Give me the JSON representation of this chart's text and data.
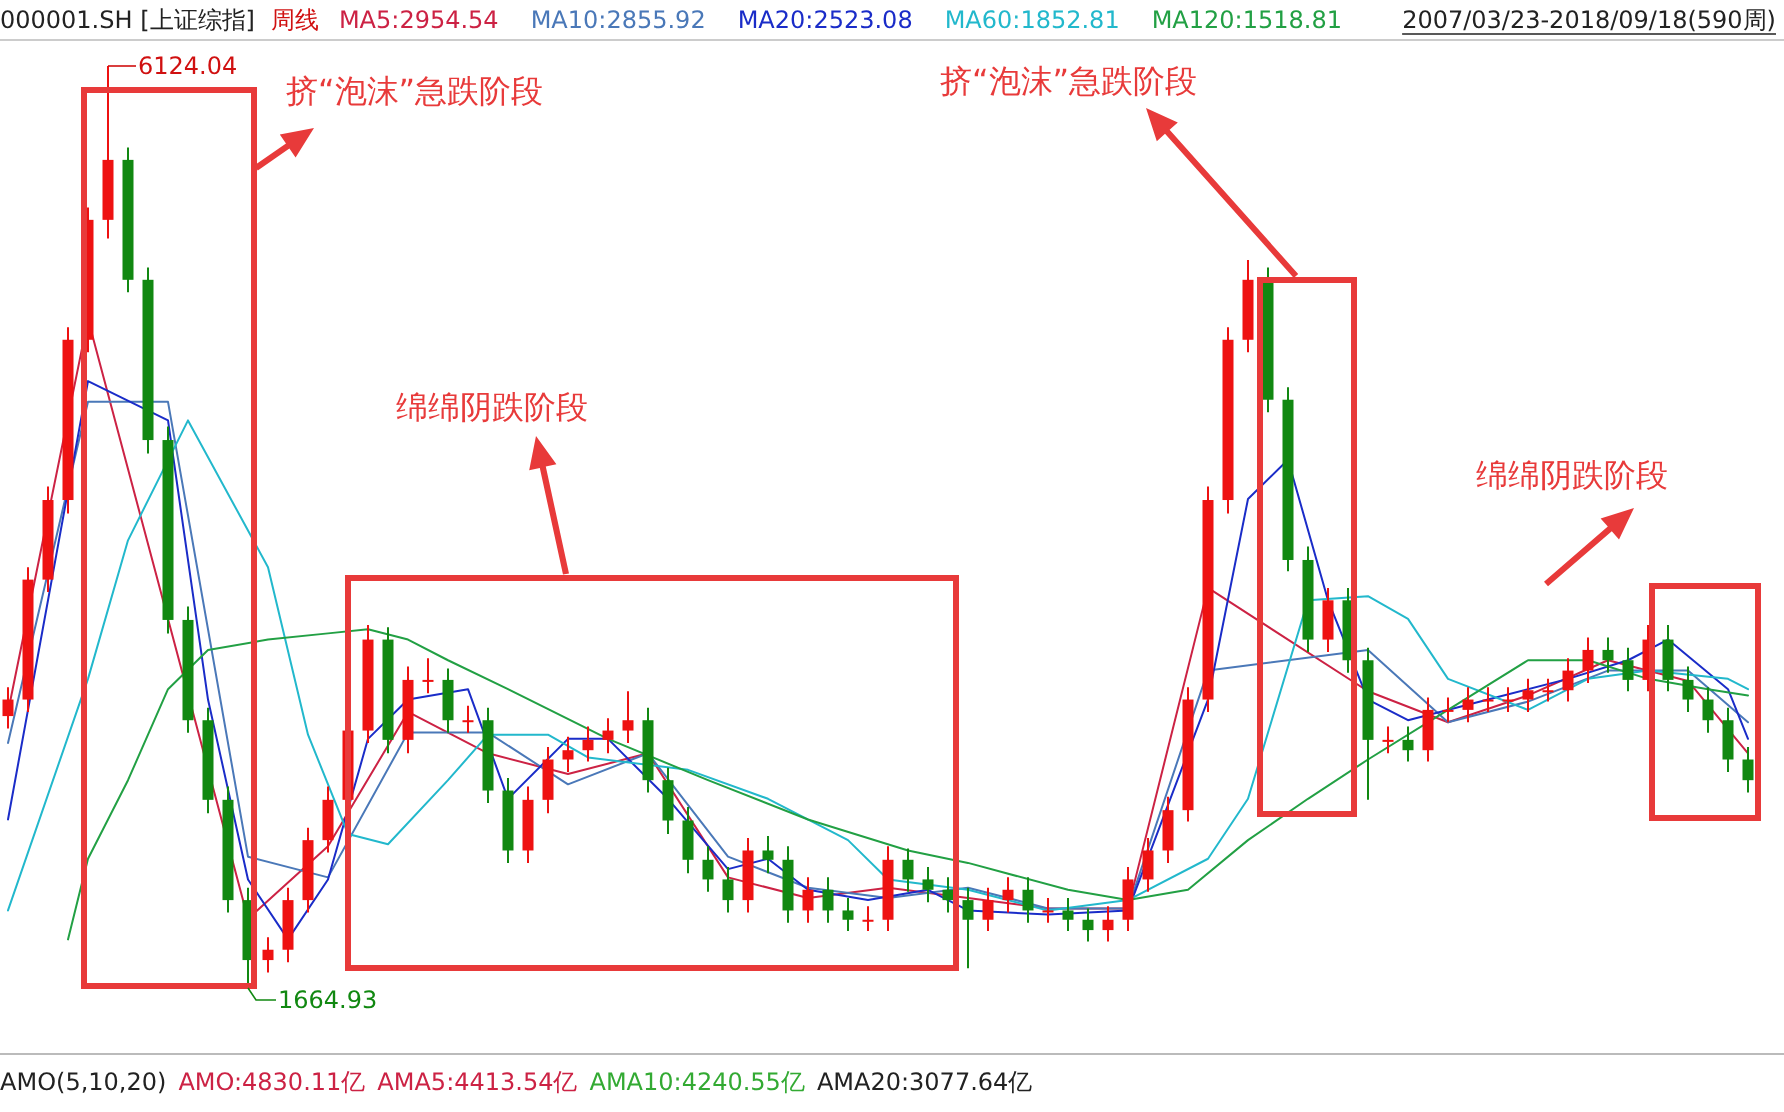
{
  "chart_data": {
    "type": "candlestick",
    "title": "000001.SH [上证综指]",
    "subtitle": "周线",
    "legend": "top",
    "categories": [
      null,
      null,
      null,
      null,
      null,
      null,
      null,
      null,
      null,
      null,
      null,
      null,
      null,
      null,
      null,
      null,
      null,
      null,
      null,
      null,
      null,
      null,
      null,
      null,
      null,
      null,
      null,
      null,
      null,
      null,
      null,
      null,
      null,
      null,
      null,
      null,
      null,
      null,
      null,
      null,
      null,
      null,
      null,
      null,
      null,
      null,
      null,
      null,
      null,
      null,
      null,
      null,
      null,
      null,
      null,
      null,
      null,
      null,
      null,
      null,
      null,
      null,
      null,
      null,
      null,
      null,
      null,
      null,
      null,
      null,
      null,
      null,
      null,
      null,
      null,
      null,
      null,
      null,
      null,
      null,
      null,
      null,
      null,
      null,
      null,
      null,
      null,
      null
    ],
    "ohlc": [
      [
        2980,
        3120,
        2920,
        3060
      ],
      [
        3060,
        3700,
        3000,
        3640
      ],
      [
        3640,
        4090,
        3580,
        4025
      ],
      [
        4025,
        4860,
        3960,
        4800
      ],
      [
        4800,
        5440,
        4740,
        5380
      ],
      [
        5380,
        6124.04,
        5290,
        5670
      ],
      [
        5670,
        5730,
        5030,
        5090
      ],
      [
        5090,
        5150,
        4250,
        4315
      ],
      [
        4315,
        4380,
        3380,
        3445
      ],
      [
        3445,
        3510,
        2900,
        2960
      ],
      [
        2960,
        3020,
        2510,
        2575
      ],
      [
        2575,
        2640,
        2030,
        2090
      ],
      [
        2090,
        2150,
        1664.93,
        1800
      ],
      [
        1800,
        1910,
        1740,
        1850
      ],
      [
        1850,
        2150,
        1790,
        2090
      ],
      [
        2090,
        2440,
        2030,
        2380
      ],
      [
        2380,
        2640,
        2320,
        2575
      ],
      [
        2575,
        2970,
        2510,
        2910
      ],
      [
        2910,
        3420,
        2850,
        3350
      ],
      [
        3350,
        3410,
        2800,
        2865
      ],
      [
        2865,
        3220,
        2800,
        3155
      ],
      [
        3155,
        3260,
        3090,
        3155
      ],
      [
        3155,
        3210,
        2900,
        2960
      ],
      [
        2960,
        3030,
        2900,
        2960
      ],
      [
        2960,
        3020,
        2560,
        2620
      ],
      [
        2620,
        2680,
        2270,
        2330
      ],
      [
        2330,
        2640,
        2270,
        2575
      ],
      [
        2575,
        2830,
        2510,
        2770
      ],
      [
        2770,
        2880,
        2710,
        2815
      ],
      [
        2815,
        2930,
        2760,
        2865
      ],
      [
        2865,
        2970,
        2800,
        2910
      ],
      [
        2910,
        3100,
        2850,
        2960
      ],
      [
        2960,
        3020,
        2610,
        2670
      ],
      [
        2670,
        2730,
        2410,
        2475
      ],
      [
        2475,
        2540,
        2220,
        2285
      ],
      [
        2285,
        2350,
        2130,
        2190
      ],
      [
        2190,
        2250,
        2030,
        2090
      ],
      [
        2090,
        2390,
        2030,
        2330
      ],
      [
        2330,
        2400,
        2220,
        2285
      ],
      [
        2285,
        2350,
        1980,
        2040
      ],
      [
        2040,
        2200,
        1980,
        2140
      ],
      [
        2140,
        2200,
        1980,
        2040
      ],
      [
        2040,
        2100,
        1940,
        1995
      ],
      [
        1995,
        2060,
        1940,
        1995
      ],
      [
        1995,
        2350,
        1940,
        2285
      ],
      [
        2285,
        2340,
        2130,
        2190
      ],
      [
        2190,
        2250,
        2080,
        2140
      ],
      [
        2140,
        2200,
        2030,
        2090
      ],
      [
        2090,
        2150,
        1760,
        1995
      ],
      [
        1995,
        2150,
        1940,
        2090
      ],
      [
        2090,
        2200,
        2030,
        2140
      ],
      [
        2140,
        2200,
        1980,
        2040
      ],
      [
        2040,
        2100,
        1980,
        2040
      ],
      [
        2040,
        2100,
        1940,
        1995
      ],
      [
        1995,
        2050,
        1890,
        1945
      ],
      [
        1945,
        2060,
        1890,
        1995
      ],
      [
        1995,
        2250,
        1940,
        2190
      ],
      [
        2190,
        2390,
        2130,
        2330
      ],
      [
        2330,
        2590,
        2270,
        2525
      ],
      [
        2525,
        3120,
        2470,
        3060
      ],
      [
        3060,
        4090,
        3000,
        4025
      ],
      [
        4025,
        4860,
        3960,
        4800
      ],
      [
        4800,
        5186,
        4740,
        5090
      ],
      [
        5090,
        5150,
        4450,
        4510
      ],
      [
        4510,
        4570,
        3680,
        3735
      ],
      [
        3735,
        3800,
        3290,
        3350
      ],
      [
        3350,
        3600,
        3290,
        3540
      ],
      [
        3540,
        3600,
        3190,
        3250
      ],
      [
        3250,
        3310,
        2575,
        2865
      ],
      [
        2865,
        2930,
        2800,
        2865
      ],
      [
        2865,
        2930,
        2760,
        2815
      ],
      [
        2815,
        3070,
        2760,
        3010
      ],
      [
        3010,
        3070,
        2950,
        3010
      ],
      [
        3010,
        3120,
        2950,
        3060
      ],
      [
        3060,
        3120,
        3000,
        3060
      ],
      [
        3060,
        3120,
        3000,
        3060
      ],
      [
        3060,
        3160,
        3000,
        3105
      ],
      [
        3105,
        3160,
        3050,
        3105
      ],
      [
        3105,
        3260,
        3050,
        3200
      ],
      [
        3200,
        3360,
        3140,
        3300
      ],
      [
        3300,
        3360,
        3190,
        3250
      ],
      [
        3250,
        3310,
        3100,
        3155
      ],
      [
        3155,
        3420,
        3100,
        3350
      ],
      [
        3350,
        3420,
        3100,
        3155
      ],
      [
        3155,
        3220,
        3000,
        3060
      ],
      [
        3060,
        3120,
        2900,
        2960
      ],
      [
        2960,
        3020,
        2710,
        2770
      ],
      [
        2770,
        2830,
        2610,
        2670
      ]
    ],
    "series": [
      {
        "name": "MA5:2954.54",
        "color": "#cc2244",
        "type": "line",
        "values": [
          3000,
          null,
          null,
          null,
          4900,
          null,
          null,
          null,
          null,
          null,
          null,
          null,
          2000,
          null,
          null,
          null,
          2350,
          null,
          null,
          null,
          3000,
          null,
          null,
          null,
          2800,
          null,
          null,
          null,
          2700,
          null,
          null,
          null,
          2800,
          null,
          null,
          null,
          2200,
          null,
          null,
          null,
          2100,
          null,
          null,
          null,
          2150,
          null,
          null,
          null,
          2100,
          null,
          null,
          null,
          2050,
          null,
          null,
          null,
          2050,
          null,
          null,
          null,
          3600,
          null,
          null,
          null,
          null,
          null,
          null,
          null,
          3100,
          null,
          null,
          null,
          2950,
          null,
          null,
          null,
          3080,
          null,
          null,
          null,
          3250,
          null,
          null,
          null,
          3150,
          null,
          null,
          2800
        ]
      },
      {
        "name": "MA10:2855.92",
        "color": "#4a78b8",
        "type": "line",
        "values": [
          2850,
          null,
          null,
          null,
          4500,
          null,
          null,
          null,
          4500,
          null,
          null,
          null,
          2300,
          null,
          null,
          null,
          2200,
          null,
          null,
          null,
          2900,
          null,
          null,
          null,
          2900,
          null,
          null,
          null,
          2650,
          null,
          null,
          null,
          2800,
          null,
          null,
          null,
          2300,
          null,
          null,
          null,
          2150,
          null,
          null,
          null,
          2100,
          null,
          null,
          null,
          2150,
          null,
          null,
          null,
          2050,
          null,
          null,
          null,
          2050,
          null,
          null,
          null,
          3200,
          null,
          null,
          null,
          null,
          null,
          null,
          null,
          3300,
          null,
          null,
          null,
          2950,
          null,
          null,
          null,
          3050,
          null,
          null,
          null,
          3200,
          null,
          null,
          null,
          3200,
          null,
          null,
          2950
        ]
      },
      {
        "name": "MA20:2523.08",
        "color": "#1a2cc8",
        "type": "line",
        "values": [
          2480,
          null,
          null,
          null,
          4600,
          null,
          null,
          null,
          4410,
          null,
          3060,
          null,
          2190,
          null,
          1900,
          null,
          2190,
          null,
          2870,
          null,
          3060,
          null,
          null,
          3110,
          null,
          2580,
          null,
          null,
          2870,
          null,
          2870,
          null,
          null,
          2580,
          null,
          null,
          2240,
          null,
          2290,
          null,
          2140,
          null,
          null,
          2090,
          null,
          null,
          2140,
          null,
          2040,
          null,
          null,
          null,
          2020,
          null,
          null,
          null,
          2040,
          null,
          null,
          null,
          3060,
          null,
          4030,
          null,
          4220,
          null,
          3540,
          null,
          3060,
          null,
          2960,
          null,
          null,
          null,
          3060,
          null,
          null,
          null,
          3160,
          null,
          null,
          3250,
          null,
          3350,
          null,
          null,
          3110,
          2870
        ]
      },
      {
        "name": "MA60:1852.81",
        "color": "#22b8cc",
        "type": "line",
        "values": [
          2040,
          null,
          null,
          null,
          3160,
          null,
          3830,
          null,
          null,
          4410,
          null,
          null,
          null,
          3700,
          null,
          2890,
          null,
          2410,
          null,
          2360,
          null,
          null,
          2670,
          null,
          2890,
          null,
          null,
          2890,
          null,
          2780,
          null,
          null,
          null,
          null,
          2720,
          null,
          null,
          null,
          2580,
          null,
          null,
          null,
          2380,
          null,
          2190,
          null,
          null,
          null,
          2140,
          null,
          null,
          null,
          2040,
          null,
          null,
          null,
          2090,
          null,
          null,
          null,
          2290,
          null,
          2580,
          null,
          null,
          3540,
          null,
          null,
          3560,
          null,
          3450,
          null,
          3160,
          null,
          null,
          null,
          3010,
          null,
          null,
          3160,
          null,
          null,
          3200,
          null,
          null,
          null,
          3160,
          3110
        ]
      },
      {
        "name": "MA120:1518.81",
        "color": "#22a044",
        "type": "line",
        "values": [
          null,
          null,
          null,
          1900,
          2290,
          null,
          2670,
          null,
          3110,
          null,
          3300,
          null,
          null,
          3350,
          null,
          null,
          3380,
          null,
          3400,
          null,
          3350,
          null,
          3250,
          null,
          null,
          3110,
          null,
          null,
          null,
          null,
          2870,
          null,
          null,
          null,
          null,
          2670,
          null,
          null,
          null,
          null,
          2480,
          null,
          null,
          null,
          null,
          2330,
          null,
          null,
          2270,
          null,
          null,
          null,
          null,
          2140,
          null,
          null,
          2090,
          null,
          null,
          2140,
          null,
          null,
          2380,
          null,
          null,
          2580,
          null,
          null,
          2770,
          null,
          null,
          null,
          3010,
          null,
          null,
          null,
          3250,
          null,
          null,
          3250,
          null,
          null,
          3160,
          null,
          null,
          3110,
          null,
          3080
        ]
      }
    ],
    "annotations": [
      "2007/03/23-2018/09/18(590周)",
      "挤“泡沫”急跌阶段",
      "绵绵阴跌阶段",
      "挤“泡沫”急跌阶段",
      "绵绵阴跌阶段",
      "AMO(5,10,20)",
      "AMO:4830.11亿",
      "AMA5:4413.54亿",
      "AMA10:4240.55亿",
      "AMA20:3077.64亿",
      "6124.04",
      "1664.93"
    ]
  }
}
